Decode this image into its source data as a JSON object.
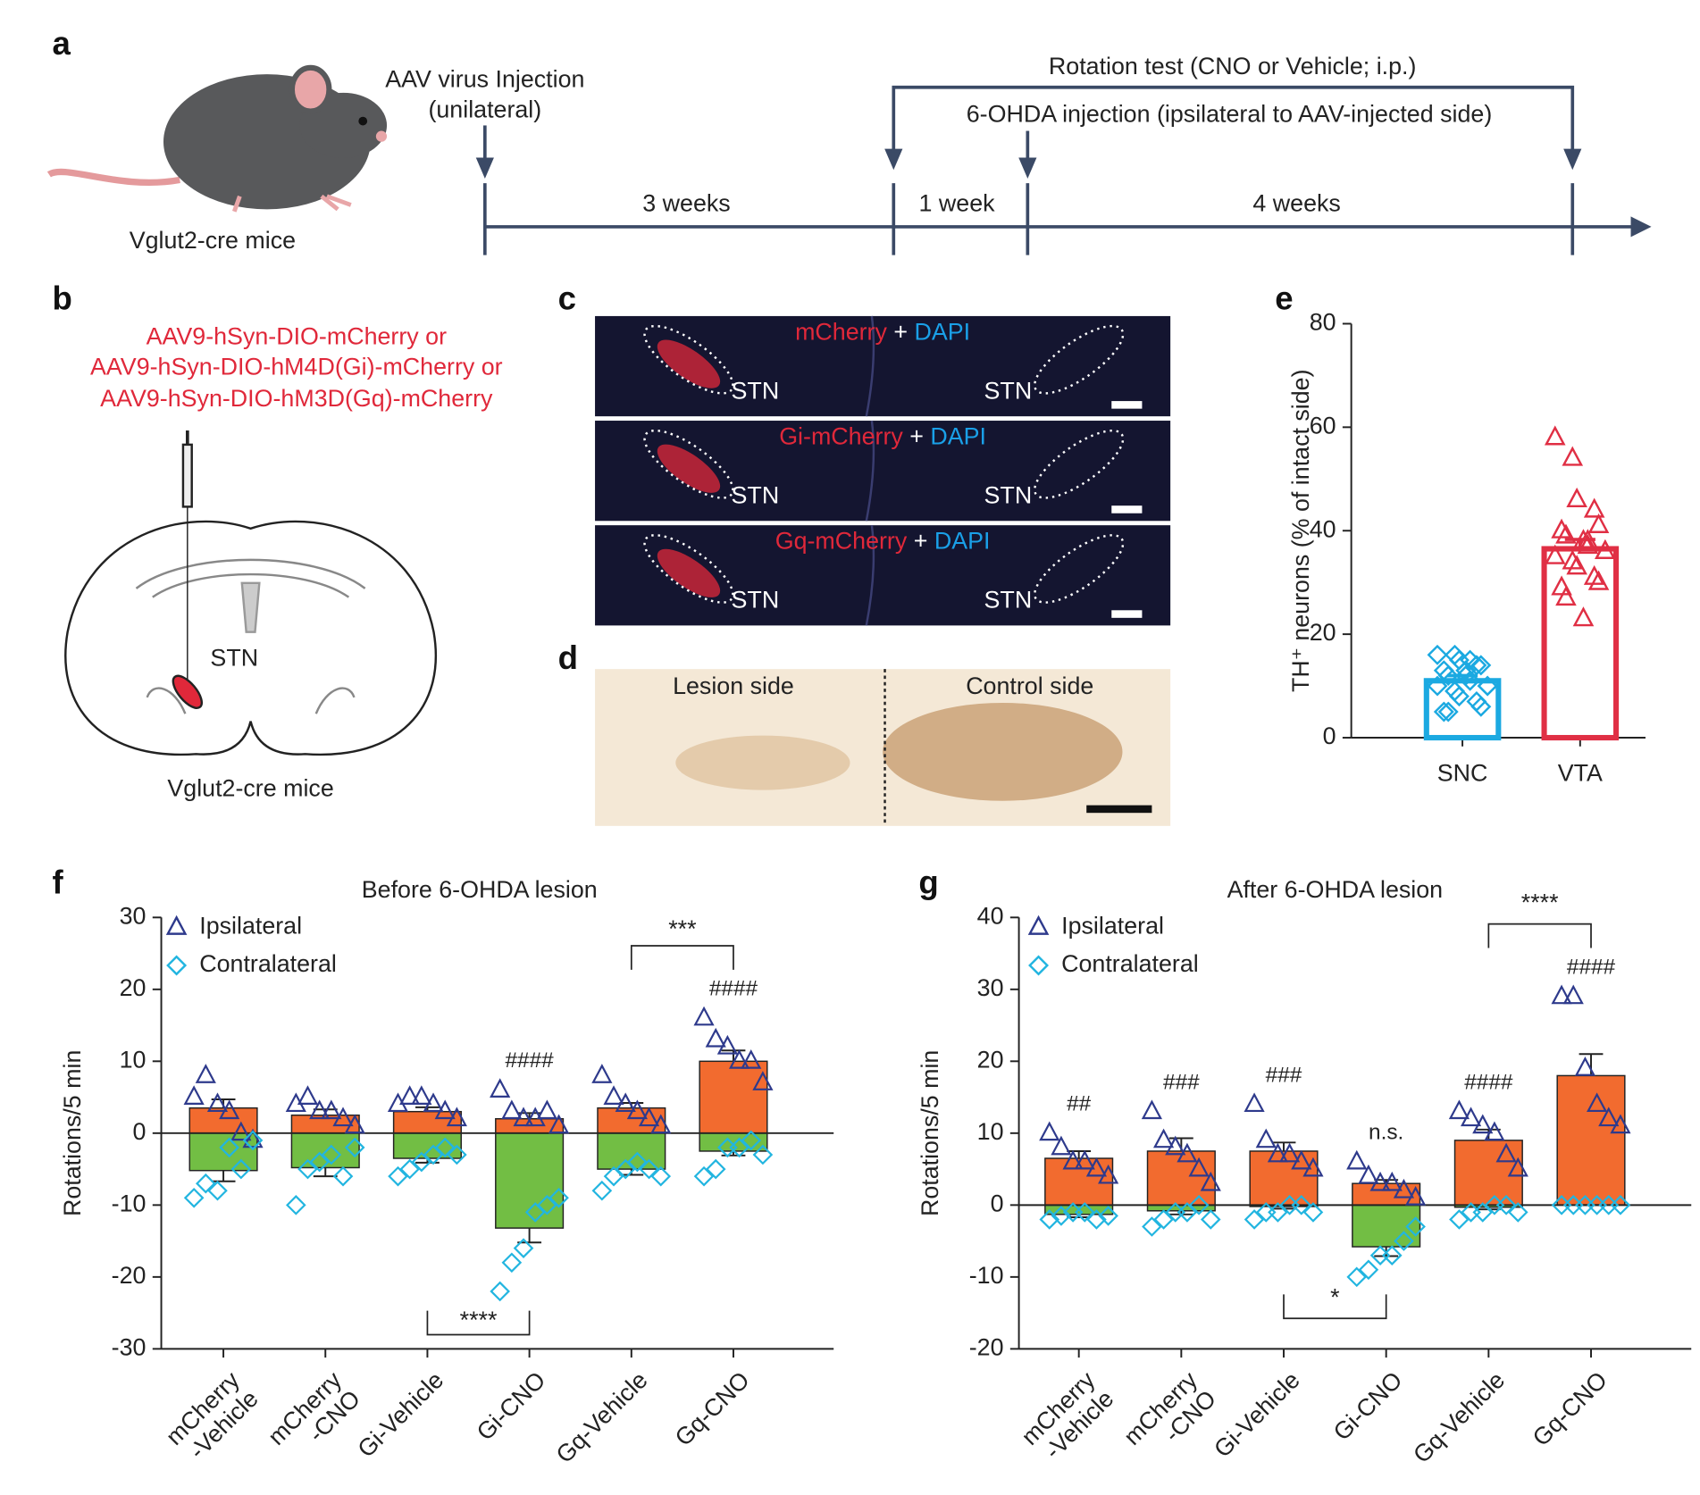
{
  "panel_labels": [
    "a",
    "b",
    "c",
    "d",
    "e",
    "f",
    "g"
  ],
  "timeline": {
    "subject": "Vglut2-cre mice",
    "injection": [
      "AAV virus Injection",
      "(unilateral)"
    ],
    "rotation_test": "Rotation test (CNO or Vehicle; i.p.)",
    "lesion": "6-OHDA injection (ipsilateral to AAV-injected side)",
    "intervals": [
      "3 weeks",
      "1 week",
      "4 weeks"
    ]
  },
  "brain": {
    "constructs": [
      "AAV9-hSyn-DIO-mCherry  or",
      "AAV9-hSyn-DIO-hM4D(Gi)-mCherry or",
      "AAV9-hSyn-DIO-hM3D(Gq)-mCherry"
    ],
    "region": "STN",
    "subject": "Vglut2-cre mice"
  },
  "histology": {
    "rows": [
      {
        "marker": "mCherry",
        "joiner": " + ",
        "stain": "DAPI",
        "labels": [
          "STN",
          "STN"
        ]
      },
      {
        "marker": "Gi-mCherry",
        "joiner": " + ",
        "stain": "DAPI",
        "labels": [
          "STN",
          "STN"
        ]
      },
      {
        "marker": "Gq-mCherry",
        "joiner": " + ",
        "stain": "DAPI",
        "labels": [
          "STN",
          "STN"
        ]
      }
    ],
    "lesion": {
      "left": "Lesion side",
      "right": "Control side"
    }
  },
  "chart_data": [
    {
      "type": "bar",
      "ylabel": "TH⁺ neurons (% of intact side)",
      "categories": [
        "SNC",
        "VTA"
      ],
      "values": [
        11,
        36.5
      ],
      "errors": [
        1,
        1.8
      ],
      "colors": [
        "#1ba9e1",
        "#e02f44"
      ],
      "points": [
        [
          16,
          16,
          15,
          14,
          14,
          13,
          12,
          12,
          11,
          10,
          10,
          9,
          8,
          7,
          6,
          5,
          5,
          13,
          15,
          10
        ],
        [
          58,
          54,
          46,
          44,
          41,
          40,
          39,
          38,
          37,
          36,
          35,
          34,
          33,
          31,
          30,
          29,
          27,
          23,
          38,
          36
        ]
      ],
      "ylim": [
        0,
        80
      ],
      "yticks": [
        0,
        20,
        40,
        60,
        80
      ]
    },
    {
      "type": "rotation",
      "title": "Before 6-OHDA lesion",
      "ylabel": "Rotations/5 min",
      "categories": [
        [
          "mCherry",
          "-Vehicle"
        ],
        [
          "mCherry",
          "-CNO"
        ],
        [
          "Gi-Vehicle"
        ],
        [
          "Gi-CNO"
        ],
        [
          "Gq-Vehicle"
        ],
        [
          "Gq-CNO"
        ]
      ],
      "series": [
        {
          "name": "Ipsilateral",
          "color": "#f26b2f",
          "marker_color": "#2e3a8c",
          "values": [
            3.5,
            2.5,
            3,
            2,
            3.5,
            10
          ],
          "errors": [
            1.2,
            0.8,
            0.6,
            0.8,
            0.7,
            1.5
          ],
          "points": [
            [
              5,
              8,
              4,
              3,
              0,
              -1
            ],
            [
              4,
              5,
              3,
              3,
              2,
              1
            ],
            [
              4,
              5,
              5,
              4,
              3,
              2
            ],
            [
              6,
              3,
              2,
              2,
              3,
              1
            ],
            [
              8,
              5,
              4,
              3,
              2,
              1
            ],
            [
              16,
              13,
              12,
              10,
              10,
              7
            ]
          ]
        },
        {
          "name": "Contralateral",
          "color": "#72be44",
          "marker_color": "#22b5e0",
          "values": [
            -5.2,
            -4.8,
            -3.5,
            -13.2,
            -5,
            -2.5
          ],
          "errors": [
            1.5,
            1.2,
            0.6,
            2,
            0.8,
            0.6
          ],
          "points": [
            [
              -9,
              -7,
              -8,
              -2,
              -5,
              -1
            ],
            [
              -10,
              -5,
              -4,
              -3,
              -6,
              -2
            ],
            [
              -6,
              -5,
              -4,
              -3,
              -2,
              -3
            ],
            [
              -22,
              -18,
              -16,
              -11,
              -10,
              -9
            ],
            [
              -8,
              -6,
              -5,
              -4,
              -5,
              -6
            ],
            [
              -6,
              -5,
              -2,
              -2,
              -1,
              -3
            ]
          ]
        }
      ],
      "significance": [
        null,
        null,
        null,
        "####",
        null,
        "####"
      ],
      "brackets": [
        "****",
        "***"
      ],
      "ylim": [
        -30,
        30
      ],
      "yticks": [
        -30,
        -20,
        -10,
        0,
        10,
        20,
        30
      ]
    },
    {
      "type": "rotation",
      "title": "After 6-OHDA lesion",
      "ylabel": "Rotations/5 min",
      "categories": [
        [
          "mCherry",
          "-Vehicle"
        ],
        [
          "mCherry",
          "-CNO"
        ],
        [
          "Gi-Vehicle"
        ],
        [
          "Gi-CNO"
        ],
        [
          "Gq-Vehicle"
        ],
        [
          "Gq-CNO"
        ]
      ],
      "series": [
        {
          "name": "Ipsilateral",
          "color": "#f26b2f",
          "marker_color": "#2e3a8c",
          "values": [
            6.5,
            7.5,
            7.5,
            3,
            9,
            18
          ],
          "errors": [
            1,
            1.8,
            1.2,
            0.5,
            1.5,
            3
          ],
          "points": [
            [
              10,
              8,
              6,
              6,
              5,
              4
            ],
            [
              13,
              9,
              8,
              7,
              5,
              3
            ],
            [
              14,
              9,
              7,
              7,
              6,
              5
            ],
            [
              6,
              4,
              3,
              3,
              2,
              1
            ],
            [
              13,
              12,
              11,
              10,
              7,
              5
            ],
            [
              29,
              29,
              19,
              14,
              12,
              11
            ]
          ]
        },
        {
          "name": "Contralateral",
          "color": "#72be44",
          "marker_color": "#22b5e0",
          "values": [
            -1.3,
            -0.8,
            -0.2,
            -5.8,
            -0.3,
            0
          ],
          "errors": [
            0.4,
            0.5,
            0.3,
            1.3,
            0.3,
            0
          ],
          "points": [
            [
              -2,
              -1.5,
              -1,
              -1,
              -2,
              -1.5
            ],
            [
              -3,
              -2,
              -1,
              -1,
              0,
              -2
            ],
            [
              -2,
              -1,
              -1,
              0,
              0,
              -1
            ],
            [
              -10,
              -9,
              -7,
              -7,
              -5,
              -3
            ],
            [
              -2,
              -1,
              -1,
              0,
              0,
              -1
            ],
            [
              0,
              0,
              0,
              0,
              0,
              0
            ]
          ]
        }
      ],
      "significance": [
        "##",
        "###",
        "###",
        "n.s.",
        "####",
        "####"
      ],
      "brackets": [
        "*",
        "****"
      ],
      "ylim": [
        -20,
        40
      ],
      "yticks": [
        -20,
        -10,
        0,
        10,
        20,
        30,
        40
      ]
    }
  ]
}
